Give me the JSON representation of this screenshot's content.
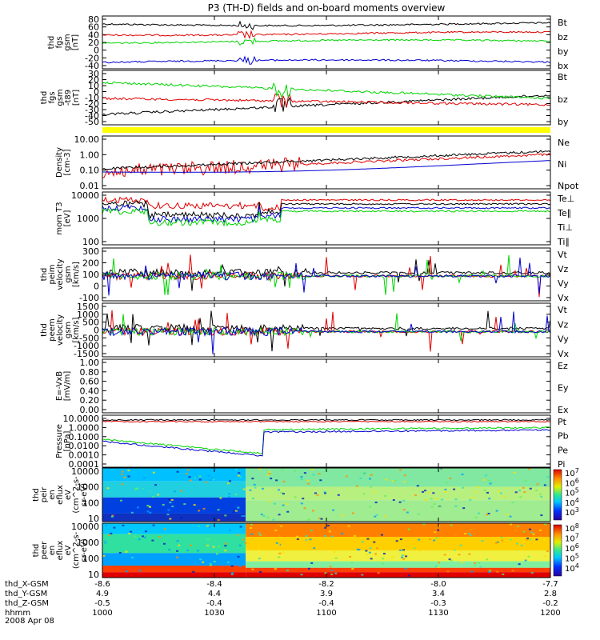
{
  "title": "P3 (TH-D) fields and on-board moments overview",
  "colors": {
    "black": "#000000",
    "red": "#e00000",
    "green": "#00d400",
    "blue": "#0000d0",
    "yellow": "#ffff00"
  },
  "chart_data": [
    {
      "id": "p1",
      "type": "line",
      "ylabel": [
        "thd",
        "fgs",
        "gsm",
        "[nT]"
      ],
      "ylim": [
        -50,
        90
      ],
      "ticks": [
        80,
        60,
        40,
        20,
        0,
        -20,
        -40
      ],
      "series": [
        {
          "name": "Bt",
          "color": "#000000",
          "level": 65
        },
        {
          "name": "bz",
          "color": "#e00000",
          "level": 42
        },
        {
          "name": "by",
          "color": "#00d400",
          "level": 22
        },
        {
          "name": "bx",
          "color": "#0000d0",
          "level": -35
        }
      ]
    },
    {
      "id": "p2",
      "type": "line",
      "ylabel": [
        "thd",
        "fgs",
        "gsm",
        "-t89"
      ],
      "ylabel2": "[nT]",
      "ylim": [
        -60,
        35
      ],
      "ticks": [
        30,
        20,
        10,
        0,
        -10,
        -20,
        -30,
        -40,
        -50
      ],
      "series": [
        {
          "name": "Bt",
          "color": "#000000",
          "level": -28
        },
        {
          "name": "bz",
          "color": "#e00000",
          "level": 5
        },
        {
          "name": "by",
          "color": "#00d400",
          "level": 20
        }
      ]
    },
    {
      "id": "p3",
      "type": "line",
      "ylabel": [
        "Density",
        "[cm-3]"
      ],
      "log": true,
      "ylim": [
        0.01,
        10
      ],
      "ticks": [
        "10.00",
        "1.00",
        "0.10",
        "0.01"
      ],
      "series": [
        {
          "name": "Ne",
          "color": "#e00000"
        },
        {
          "name": "Ni",
          "color": "#000000"
        },
        {
          "name": "Npot",
          "color": "#0000d0"
        }
      ]
    },
    {
      "id": "p4",
      "type": "line",
      "ylabel": [
        "mom T3",
        "[eV]"
      ],
      "log": true,
      "ylim": [
        50,
        10000
      ],
      "ticks": [
        "10000",
        "1000",
        "100"
      ],
      "series": [
        {
          "name": "Te⊥",
          "color": "#e00000"
        },
        {
          "name": "Te∥",
          "color": "#000000"
        },
        {
          "name": "Ti⊥",
          "color": "#0000d0"
        },
        {
          "name": "Ti∥",
          "color": "#00d400"
        }
      ]
    },
    {
      "id": "p5",
      "type": "line",
      "ylabel": [
        "thd",
        "peim",
        "velocity",
        "gsm",
        "[km/s]"
      ],
      "ylim": [
        -150,
        300
      ],
      "ticks": [
        300,
        200,
        100,
        0,
        -100
      ],
      "series": [
        {
          "name": "Vt",
          "color": "#000000"
        },
        {
          "name": "Vz",
          "color": "#e00000"
        },
        {
          "name": "Vy",
          "color": "#00d400"
        },
        {
          "name": "Vx",
          "color": "#0000d0"
        }
      ]
    },
    {
      "id": "p6",
      "type": "line",
      "ylabel": [
        "thd",
        "peem",
        "velocity",
        "gsm",
        "[km/s]"
      ],
      "ylim": [
        -1500,
        1600
      ],
      "ticks": [
        1500,
        1000,
        500,
        0,
        -500,
        -1000,
        -1500
      ],
      "series": [
        {
          "name": "Vt",
          "color": "#000000"
        },
        {
          "name": "Vz",
          "color": "#e00000"
        },
        {
          "name": "Vy",
          "color": "#00d400"
        },
        {
          "name": "Vx",
          "color": "#0000d0"
        }
      ]
    },
    {
      "id": "p7",
      "type": "line",
      "ylabel": [
        "E=-VxB",
        "[mV/m]"
      ],
      "ylim": [
        0,
        1
      ],
      "ticks": [
        "1.00",
        "0.80",
        "0.60",
        "0.40",
        "0.20",
        "0.00"
      ],
      "series": [
        {
          "name": "Ez",
          "color": "#e00000"
        },
        {
          "name": "Ey",
          "color": "#00d400"
        },
        {
          "name": "Ex",
          "color": "#0000d0"
        }
      ]
    },
    {
      "id": "p8",
      "type": "line",
      "ylabel": [
        "Pressure",
        "[nPa]"
      ],
      "log": true,
      "ylim": [
        0.0001,
        10
      ],
      "ticks": [
        "10.0000",
        "1.0000",
        "0.1000",
        "0.0100",
        "0.0010",
        "0.0001"
      ],
      "series": [
        {
          "name": "Pt",
          "color": "#000000"
        },
        {
          "name": "Pb",
          "color": "#e00000"
        },
        {
          "name": "Pe",
          "color": "#00d400"
        },
        {
          "name": "Pi",
          "color": "#0000d0"
        }
      ]
    },
    {
      "id": "p9",
      "type": "heatmap",
      "ylabel": [
        "thd",
        "peir",
        "en",
        "eflux",
        "eV",
        "(cm^2-s-",
        "sr-eV)"
      ],
      "ylim": [
        10,
        20000
      ],
      "ticks": [
        "10000",
        "1000",
        "100",
        "10"
      ],
      "colorbar": [
        "10^7",
        "10^6",
        "10^5",
        "10^4",
        "10^3"
      ]
    },
    {
      "id": "p10",
      "type": "heatmap",
      "ylabel": [
        "thd",
        "peer",
        "en",
        "eflux",
        "eV",
        "(cm^2-s-",
        "sr-eV)"
      ],
      "ylim": [
        8,
        20000
      ],
      "ticks": [
        "10000",
        "1000",
        "100",
        "10"
      ],
      "colorbar": [
        "10^8",
        "10^7",
        "10^6",
        "10^5",
        "10^4"
      ]
    }
  ],
  "x_axis": {
    "labels": [
      "thd_X-GSM",
      "thd_Y-GSM",
      "thd_Z-GSM",
      "hhmm",
      "2008 Apr 08"
    ],
    "columns": [
      [
        "-8.6",
        "4.9",
        "-0.5",
        "1000"
      ],
      [
        "-8.4",
        "4.4",
        "-0.4",
        "1030"
      ],
      [
        "-8.2",
        "3.9",
        "-0.4",
        "1100"
      ],
      [
        "-8.0",
        "3.4",
        "-0.3",
        "1130"
      ],
      [
        "-7.7",
        "2.8",
        "-0.2",
        "1200"
      ]
    ]
  }
}
